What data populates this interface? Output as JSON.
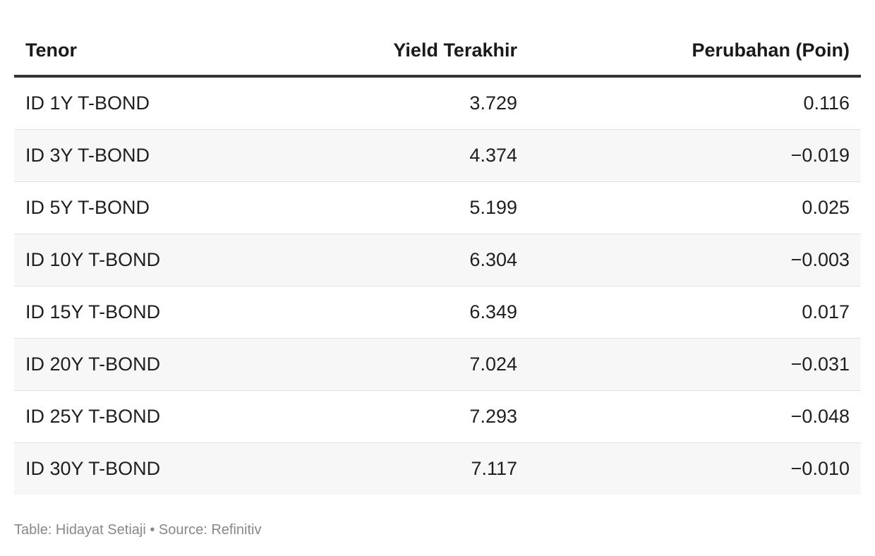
{
  "chart_data": {
    "type": "table",
    "columns": [
      "Tenor",
      "Yield Terakhir",
      "Perubahan (Poin)"
    ],
    "rows": [
      [
        "ID 1Y T-BOND",
        "3.729",
        "0.116"
      ],
      [
        "ID 3Y T-BOND",
        "4.374",
        "−0.019"
      ],
      [
        "ID 5Y T-BOND",
        "5.199",
        "0.025"
      ],
      [
        "ID 10Y T-BOND",
        "6.304",
        "−0.003"
      ],
      [
        "ID 15Y T-BOND",
        "6.349",
        "0.017"
      ],
      [
        "ID 20Y T-BOND",
        "7.024",
        "−0.031"
      ],
      [
        "ID 25Y T-BOND",
        "7.293",
        "−0.048"
      ],
      [
        "ID 30Y T-BOND",
        "7.117",
        "−0.010"
      ]
    ]
  },
  "footer": {
    "text": "Table: Hidayat Setiaji • Source: Refinitiv"
  },
  "colors": {
    "header_rule": "#333333",
    "row_alt": "#f7f7f7",
    "row_divider": "#e2e2e2",
    "footer_text": "#888888"
  }
}
